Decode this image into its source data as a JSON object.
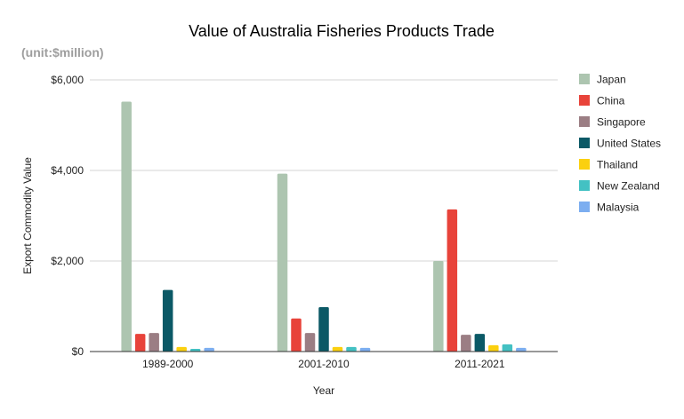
{
  "chart_data": {
    "type": "bar",
    "title": "Value of Australia Fisheries Products Trade",
    "subtitle": "(unit:$million)",
    "xlabel": "Year",
    "ylabel": "Export Commodity Value",
    "categories": [
      "1989-2000",
      "2001-2010",
      "2011-2021"
    ],
    "ylim": [
      0,
      6000
    ],
    "yticks": [
      0,
      2000,
      4000,
      6000
    ],
    "ytick_labels": [
      "$0",
      "$2,000",
      "$4,000",
      "$6,000"
    ],
    "grid": true,
    "legend_position": "right",
    "series": [
      {
        "name": "Japan",
        "color": "#adc5b0",
        "values": [
          5520,
          3930,
          2000
        ]
      },
      {
        "name": "China",
        "color": "#e8433a",
        "values": [
          390,
          730,
          3140
        ]
      },
      {
        "name": "Singapore",
        "color": "#9b7e84",
        "values": [
          410,
          410,
          370
        ]
      },
      {
        "name": "United States",
        "color": "#0b5966",
        "values": [
          1360,
          980,
          390
        ]
      },
      {
        "name": "Thailand",
        "color": "#fbd00f",
        "values": [
          100,
          100,
          140
        ]
      },
      {
        "name": "New Zealand",
        "color": "#43c1c3",
        "values": [
          60,
          100,
          160
        ]
      },
      {
        "name": "Malaysia",
        "color": "#7caef0",
        "values": [
          80,
          80,
          80
        ]
      }
    ]
  }
}
